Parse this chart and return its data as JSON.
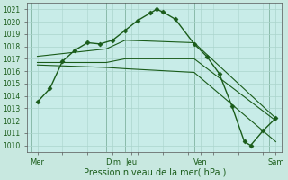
{
  "background_color": "#c8e8e0",
  "plot_bg_color": "#c8ece8",
  "grid_color": "#aad4cc",
  "line_color": "#1a5c1a",
  "marker_color": "#1a5c1a",
  "xlabel": "Pression niveau de la mer( hPa )",
  "ylim": [
    1009.5,
    1021.5
  ],
  "yticks": [
    1010,
    1011,
    1012,
    1013,
    1014,
    1015,
    1016,
    1017,
    1018,
    1019,
    1020,
    1021
  ],
  "xlim": [
    -0.3,
    20.0
  ],
  "xtick_labels": [
    "Mer",
    "Dim",
    "Jeu",
    "Ven",
    "Sam"
  ],
  "xtick_positions": [
    0.5,
    6.5,
    8.0,
    13.5,
    19.5
  ],
  "vlines_x": [
    0.0,
    6.0,
    7.5,
    13.0,
    19.0
  ],
  "lines": [
    {
      "x": [
        0.5,
        1.5,
        2.5,
        3.5,
        4.5,
        5.5,
        6.5,
        7.5,
        8.5,
        9.5,
        10.0,
        10.5,
        11.5,
        13.0,
        14.0,
        15.0,
        16.0,
        17.0,
        17.5,
        18.5,
        19.5
      ],
      "y": [
        1013.5,
        1014.6,
        1016.8,
        1017.7,
        1018.3,
        1018.2,
        1018.5,
        1019.3,
        1020.1,
        1020.7,
        1021.0,
        1020.8,
        1020.2,
        1018.2,
        1017.2,
        1015.8,
        1013.2,
        1010.3,
        1010.0,
        1011.2,
        1012.2
      ],
      "marker": "D",
      "markersize": 2.5,
      "linewidth": 1.0,
      "zorder": 3
    },
    {
      "x": [
        0.5,
        6.0,
        7.5,
        13.0,
        19.5
      ],
      "y": [
        1016.7,
        1016.7,
        1017.0,
        1017.0,
        1012.0
      ],
      "marker": null,
      "markersize": 0,
      "linewidth": 0.8,
      "zorder": 2
    },
    {
      "x": [
        0.5,
        6.0,
        7.5,
        13.0,
        19.5
      ],
      "y": [
        1016.5,
        1016.3,
        1016.2,
        1015.9,
        1010.3
      ],
      "marker": null,
      "markersize": 0,
      "linewidth": 0.8,
      "zorder": 2
    },
    {
      "x": [
        0.5,
        6.0,
        7.5,
        13.0,
        19.5
      ],
      "y": [
        1017.2,
        1017.8,
        1018.5,
        1018.3,
        1012.2
      ],
      "marker": null,
      "markersize": 0,
      "linewidth": 0.8,
      "zorder": 2
    }
  ],
  "xlabel_fontsize": 7,
  "ytick_fontsize": 5.5,
  "xtick_fontsize": 6.0
}
